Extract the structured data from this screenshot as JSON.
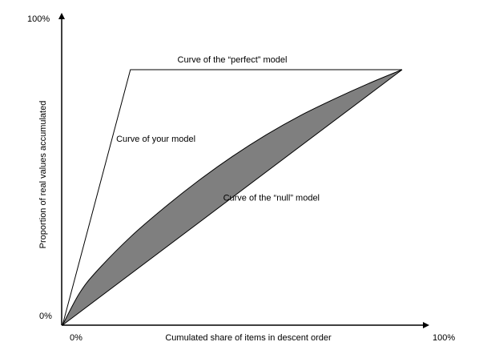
{
  "chart_data": {
    "type": "line",
    "title": "",
    "xlabel": "Cumulated share of items in descent order",
    "ylabel": "Proportion of real values accumulated",
    "xlim": [
      0,
      100
    ],
    "ylim": [
      0,
      100
    ],
    "x_ticks": {
      "min_label": "0%",
      "max_label": "100%"
    },
    "y_ticks": {
      "min_label": "0%",
      "max_label": "100%"
    },
    "grid": false,
    "legend": "none",
    "series": [
      {
        "x": [
          0,
          20,
          100
        ],
        "y": [
          0,
          100,
          100
        ],
        "color": "#000000"
      },
      {
        "x": [
          0,
          5,
          10,
          20,
          30,
          40,
          50,
          60,
          70,
          80,
          90,
          100
        ],
        "y": [
          0,
          12.5,
          21,
          34.5,
          46,
          56.5,
          66,
          74.5,
          82,
          88.5,
          94.5,
          100
        ],
        "color": "#000000"
      },
      {
        "x": [
          0,
          100
        ],
        "y": [
          0,
          100
        ],
        "color": "#000000"
      }
    ],
    "shaded_area": {
      "between": [
        "your_model",
        "null_model"
      ],
      "color": "#7f7f7f"
    },
    "annotations": [
      {
        "text": "Curve of the “perfect” model",
        "x": 50,
        "y": 104,
        "target": "perfect_model"
      },
      {
        "text": "Curve of your model",
        "x": 27.5,
        "y": 73,
        "target": "your_model"
      },
      {
        "text": "Curve of the “null” model",
        "x": 61.5,
        "y": 50,
        "target": "null_model"
      }
    ]
  }
}
